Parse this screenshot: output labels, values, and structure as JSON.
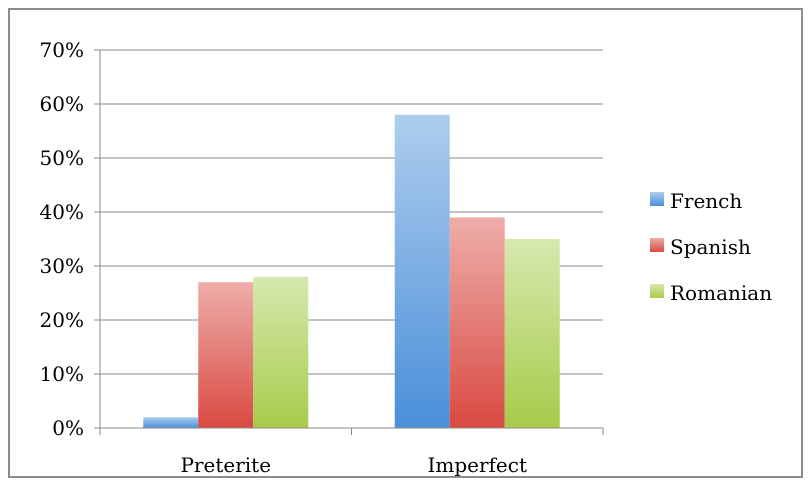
{
  "chart_data": {
    "type": "bar",
    "categories": [
      "Preterite",
      "Imperfect"
    ],
    "series": [
      {
        "name": "French",
        "values": [
          2,
          58
        ],
        "color": "#4a8fd9"
      },
      {
        "name": "Spanish",
        "values": [
          27,
          39
        ],
        "color": "#d94a42"
      },
      {
        "name": "Romanian",
        "values": [
          28,
          35
        ],
        "color": "#a6cc4a"
      }
    ],
    "ylim": [
      0,
      70
    ],
    "yticks": [
      "0%",
      "10%",
      "20%",
      "30%",
      "40%",
      "50%",
      "60%",
      "70%"
    ],
    "grid": true,
    "legend_position": "right",
    "title": "",
    "xlabel": "",
    "ylabel": ""
  }
}
